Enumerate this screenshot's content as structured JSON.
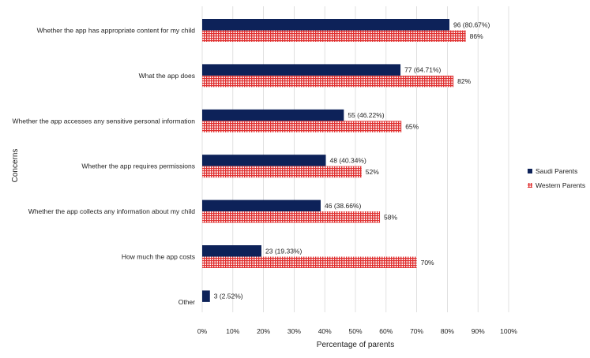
{
  "chart_data": {
    "type": "bar",
    "orientation": "horizontal",
    "title": "",
    "xlabel": "Percentage of parents",
    "ylabel": "Concerns",
    "xlim": [
      0,
      100
    ],
    "xticks": [
      "0%",
      "10%",
      "20%",
      "30%",
      "40%",
      "50%",
      "60%",
      "70%",
      "80%",
      "90%",
      "100%"
    ],
    "grid": true,
    "legend_position": "right",
    "categories": [
      "Whether the app has appropriate content for my child",
      "What the app does",
      "Whether the app accesses any sensitive personal information",
      "Whether the app requires permissions",
      "Whether the app collects any information about my child",
      "How much the app costs",
      "Other"
    ],
    "series": [
      {
        "name": "Saudi Parents",
        "color": "#0d2259",
        "pattern": "solid",
        "values": [
          80.67,
          64.71,
          46.22,
          40.34,
          38.66,
          19.33,
          2.52
        ],
        "labels": [
          "96 (80.67%)",
          "77 (64.71%)",
          "55 (46.22%)",
          "48 (40.34%)",
          "46 (38.66%)",
          "23 (19.33%)",
          "3 (2.52%)"
        ]
      },
      {
        "name": "Western Parents",
        "color": "#e03030",
        "pattern": "crosshatch",
        "values": [
          86,
          82,
          65,
          52,
          58,
          70,
          null
        ],
        "labels": [
          "86%",
          "82%",
          "65%",
          "52%",
          "58%",
          "70%",
          ""
        ]
      }
    ]
  }
}
